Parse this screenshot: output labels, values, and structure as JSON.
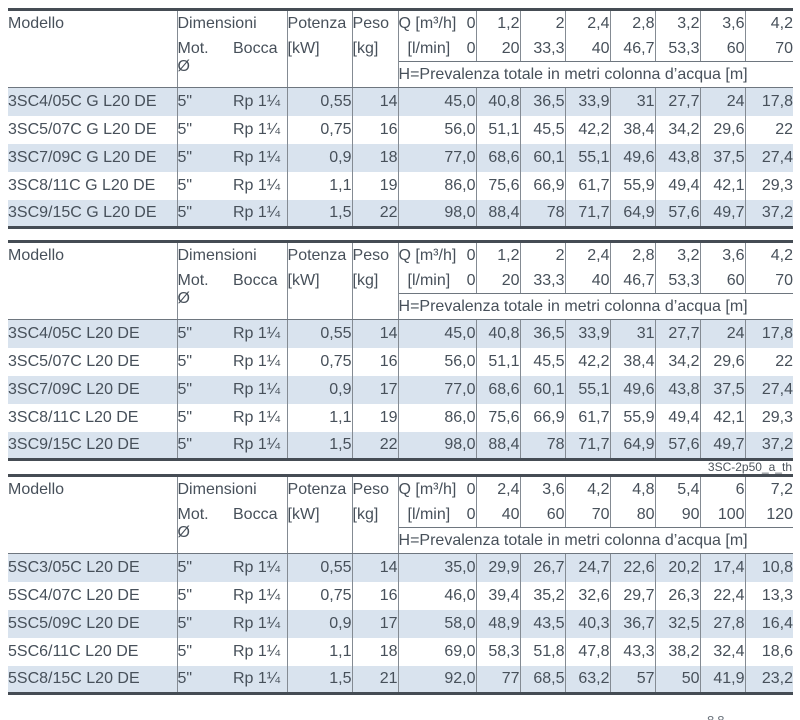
{
  "styles": {
    "row_shade": "#d9e3ee",
    "text_color": "#47505a",
    "border_dark": "#454c54",
    "border_light": "#848b93"
  },
  "footer": {
    "partial_text": "88"
  },
  "tables": [
    {
      "header": {
        "modello": "Modello",
        "dimensioni": "Dimensioni",
        "mot_label": "Mot.",
        "mot_sub": "Ø",
        "bocca": "Bocca",
        "potenza": "Potenza",
        "potenza_unit": "[kW]",
        "peso": "Peso",
        "peso_unit": "[kg]",
        "q_label": "Q [m³/h]",
        "q_zero": "0",
        "lmin_label": "[l/min]",
        "lmin_zero": "0",
        "q_values": [
          "1,2",
          "2",
          "2,4",
          "2,8",
          "3,2",
          "3,6",
          "4,2"
        ],
        "lmin_values": [
          "20",
          "33,3",
          "40",
          "46,7",
          "53,3",
          "60",
          "70"
        ],
        "h_label": "H=Prevalenza totale in metri colonna d’acqua [m]"
      },
      "rows": [
        {
          "model": "3SC4/05C G L20 DE",
          "mot": "5\"",
          "bocca": "Rp 1¼",
          "kw": "0,55",
          "kg": "14",
          "h": [
            "45,0",
            "40,8",
            "36,5",
            "33,9",
            "31",
            "27,7",
            "24",
            "17,8"
          ]
        },
        {
          "model": "3SC5/07C G L20 DE",
          "mot": "5\"",
          "bocca": "Rp 1¼",
          "kw": "0,75",
          "kg": "16",
          "h": [
            "56,0",
            "51,1",
            "45,5",
            "42,2",
            "38,4",
            "34,2",
            "29,6",
            "22"
          ]
        },
        {
          "model": "3SC7/09C G L20 DE",
          "mot": "5\"",
          "bocca": "Rp 1¼",
          "kw": "0,9",
          "kg": "18",
          "h": [
            "77,0",
            "68,6",
            "60,1",
            "55,1",
            "49,6",
            "43,8",
            "37,5",
            "27,4"
          ]
        },
        {
          "model": "3SC8/11C G L20 DE",
          "mot": "5\"",
          "bocca": "Rp 1¼",
          "kw": "1,1",
          "kg": "19",
          "h": [
            "86,0",
            "75,6",
            "66,9",
            "61,7",
            "55,9",
            "49,4",
            "42,1",
            "29,3"
          ]
        },
        {
          "model": "3SC9/15C G L20 DE",
          "mot": "5\"",
          "bocca": "Rp 1¼",
          "kw": "1,5",
          "kg": "22",
          "h": [
            "98,0",
            "88,4",
            "78",
            "71,7",
            "64,9",
            "57,6",
            "49,7",
            "37,2"
          ]
        }
      ],
      "caption": ""
    },
    {
      "header": {
        "modello": "Modello",
        "dimensioni": "Dimensioni",
        "mot_label": "Mot.",
        "mot_sub": "Ø",
        "bocca": "Bocca",
        "potenza": "Potenza",
        "potenza_unit": "[kW]",
        "peso": "Peso",
        "peso_unit": "[kg]",
        "q_label": "Q [m³/h]",
        "q_zero": "0",
        "lmin_label": "[l/min]",
        "lmin_zero": "0",
        "q_values": [
          "1,2",
          "2",
          "2,4",
          "2,8",
          "3,2",
          "3,6",
          "4,2"
        ],
        "lmin_values": [
          "20",
          "33,3",
          "40",
          "46,7",
          "53,3",
          "60",
          "70"
        ],
        "h_label": "H=Prevalenza totale in metri colonna d’acqua [m]"
      },
      "rows": [
        {
          "model": "3SC4/05C L20 DE",
          "mot": "5\"",
          "bocca": "Rp 1¼",
          "kw": "0,55",
          "kg": "14",
          "h": [
            "45,0",
            "40,8",
            "36,5",
            "33,9",
            "31",
            "27,7",
            "24",
            "17,8"
          ]
        },
        {
          "model": "3SC5/07C L20 DE",
          "mot": "5\"",
          "bocca": "Rp 1¼",
          "kw": "0,75",
          "kg": "16",
          "h": [
            "56,0",
            "51,1",
            "45,5",
            "42,2",
            "38,4",
            "34,2",
            "29,6",
            "22"
          ]
        },
        {
          "model": "3SC7/09C L20 DE",
          "mot": "5\"",
          "bocca": "Rp 1¼",
          "kw": "0,9",
          "kg": "17",
          "h": [
            "77,0",
            "68,6",
            "60,1",
            "55,1",
            "49,6",
            "43,8",
            "37,5",
            "27,4"
          ]
        },
        {
          "model": "3SC8/11C L20 DE",
          "mot": "5\"",
          "bocca": "Rp 1¼",
          "kw": "1,1",
          "kg": "19",
          "h": [
            "86,0",
            "75,6",
            "66,9",
            "61,7",
            "55,9",
            "49,4",
            "42,1",
            "29,3"
          ]
        },
        {
          "model": "3SC9/15C L20 DE",
          "mot": "5\"",
          "bocca": "Rp 1¼",
          "kw": "1,5",
          "kg": "22",
          "h": [
            "98,0",
            "88,4",
            "78",
            "71,7",
            "64,9",
            "57,6",
            "49,7",
            "37,2"
          ]
        }
      ],
      "caption": "3SC-2p50_a_th"
    },
    {
      "header": {
        "modello": "Modello",
        "dimensioni": "Dimensioni",
        "mot_label": "Mot.",
        "mot_sub": "Ø",
        "bocca": "Bocca",
        "potenza": "Potenza",
        "potenza_unit": "[kW]",
        "peso": "Peso",
        "peso_unit": "[kg]",
        "q_label": "Q [m³/h]",
        "q_zero": "0",
        "lmin_label": "[l/min]",
        "lmin_zero": "0",
        "q_values": [
          "2,4",
          "3,6",
          "4,2",
          "4,8",
          "5,4",
          "6",
          "7,2"
        ],
        "lmin_values": [
          "40",
          "60",
          "70",
          "80",
          "90",
          "100",
          "120"
        ],
        "h_label": "H=Prevalenza totale in metri colonna d’acqua [m]"
      },
      "rows": [
        {
          "model": "5SC3/05C L20 DE",
          "mot": "5\"",
          "bocca": "Rp 1¼",
          "kw": "0,55",
          "kg": "14",
          "h": [
            "35,0",
            "29,9",
            "26,7",
            "24,7",
            "22,6",
            "20,2",
            "17,4",
            "10,8"
          ]
        },
        {
          "model": "5SC4/07C L20 DE",
          "mot": "5\"",
          "bocca": "Rp 1¼",
          "kw": "0,75",
          "kg": "16",
          "h": [
            "46,0",
            "39,4",
            "35,2",
            "32,6",
            "29,7",
            "26,3",
            "22,4",
            "13,3"
          ]
        },
        {
          "model": "5SC5/09C L20 DE",
          "mot": "5\"",
          "bocca": "Rp 1¼",
          "kw": "0,9",
          "kg": "17",
          "h": [
            "58,0",
            "48,9",
            "43,5",
            "40,3",
            "36,7",
            "32,5",
            "27,8",
            "16,4"
          ]
        },
        {
          "model": "5SC6/11C L20 DE",
          "mot": "5\"",
          "bocca": "Rp 1¼",
          "kw": "1,1",
          "kg": "18",
          "h": [
            "69,0",
            "58,3",
            "51,8",
            "47,8",
            "43,3",
            "38,2",
            "32,4",
            "18,6"
          ]
        },
        {
          "model": "5SC8/15C L20 DE",
          "mot": "5\"",
          "bocca": "Rp 1¼",
          "kw": "1,5",
          "kg": "21",
          "h": [
            "92,0",
            "77",
            "68,5",
            "63,2",
            "57",
            "50",
            "41,9",
            "23,2"
          ]
        }
      ],
      "caption": ""
    }
  ]
}
